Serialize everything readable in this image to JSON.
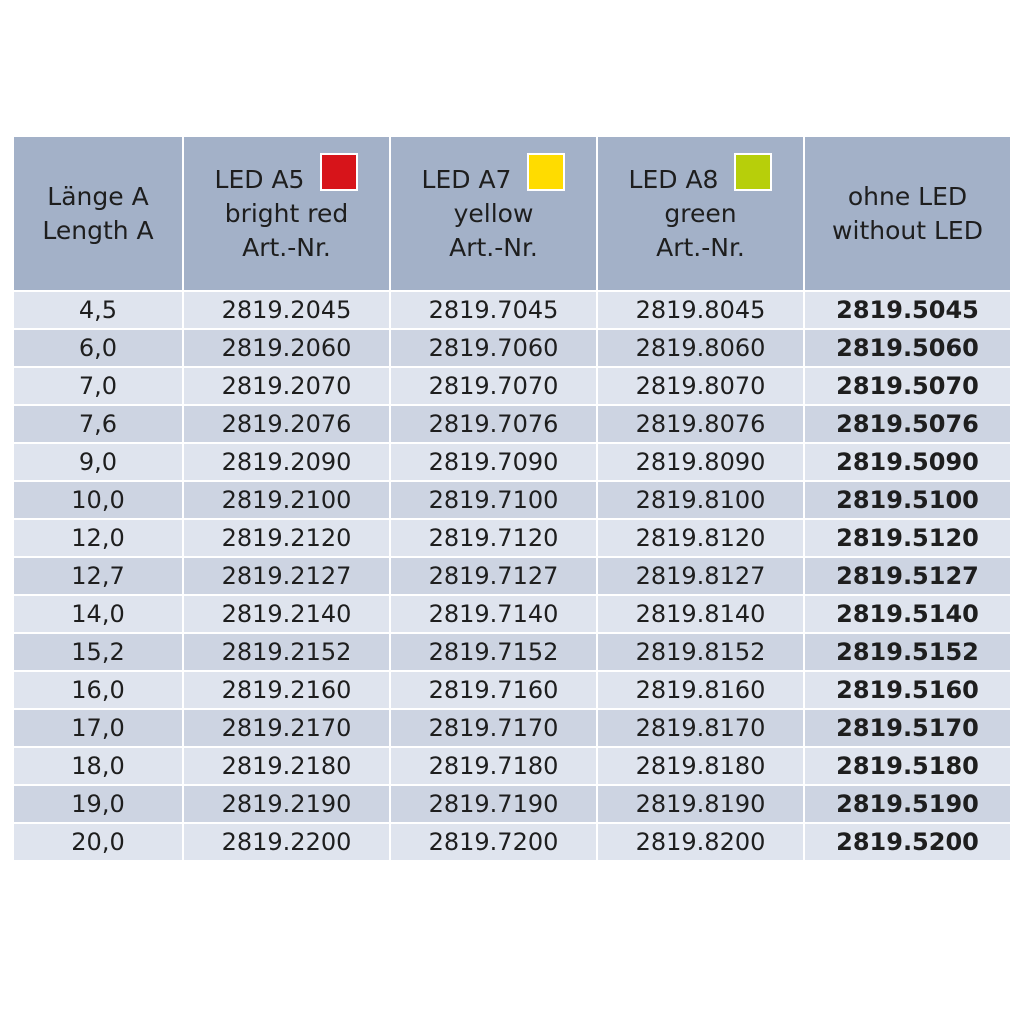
{
  "header": [
    {
      "lines": [
        "Länge A",
        "Length A"
      ]
    },
    {
      "lines": [
        "LED A5",
        "bright red",
        "Art.-Nr."
      ],
      "swatch": "#d7141a"
    },
    {
      "lines": [
        "LED A7",
        "yellow",
        "Art.-Nr."
      ],
      "swatch": "#ffdc00"
    },
    {
      "lines": [
        "LED A8",
        "green",
        "Art.-Nr."
      ],
      "swatch": "#b7cf0a"
    },
    {
      "lines": [
        "ohne LED",
        "without LED"
      ]
    }
  ],
  "rows": [
    [
      "4,5",
      "2819.2045",
      "2819.7045",
      "2819.8045",
      "2819.5045"
    ],
    [
      "6,0",
      "2819.2060",
      "2819.7060",
      "2819.8060",
      "2819.5060"
    ],
    [
      "7,0",
      "2819.2070",
      "2819.7070",
      "2819.8070",
      "2819.5070"
    ],
    [
      "7,6",
      "2819.2076",
      "2819.7076",
      "2819.8076",
      "2819.5076"
    ],
    [
      "9,0",
      "2819.2090",
      "2819.7090",
      "2819.8090",
      "2819.5090"
    ],
    [
      "10,0",
      "2819.2100",
      "2819.7100",
      "2819.8100",
      "2819.5100"
    ],
    [
      "12,0",
      "2819.2120",
      "2819.7120",
      "2819.8120",
      "2819.5120"
    ],
    [
      "12,7",
      "2819.2127",
      "2819.7127",
      "2819.8127",
      "2819.5127"
    ],
    [
      "14,0",
      "2819.2140",
      "2819.7140",
      "2819.8140",
      "2819.5140"
    ],
    [
      "15,2",
      "2819.2152",
      "2819.7152",
      "2819.8152",
      "2819.5152"
    ],
    [
      "16,0",
      "2819.2160",
      "2819.7160",
      "2819.8160",
      "2819.5160"
    ],
    [
      "17,0",
      "2819.2170",
      "2819.7170",
      "2819.8170",
      "2819.5170"
    ],
    [
      "18,0",
      "2819.2180",
      "2819.7180",
      "2819.8180",
      "2819.5180"
    ],
    [
      "19,0",
      "2819.2190",
      "2819.7190",
      "2819.8190",
      "2819.5190"
    ],
    [
      "20,0",
      "2819.2200",
      "2819.7200",
      "2819.8200",
      "2819.5200"
    ]
  ]
}
